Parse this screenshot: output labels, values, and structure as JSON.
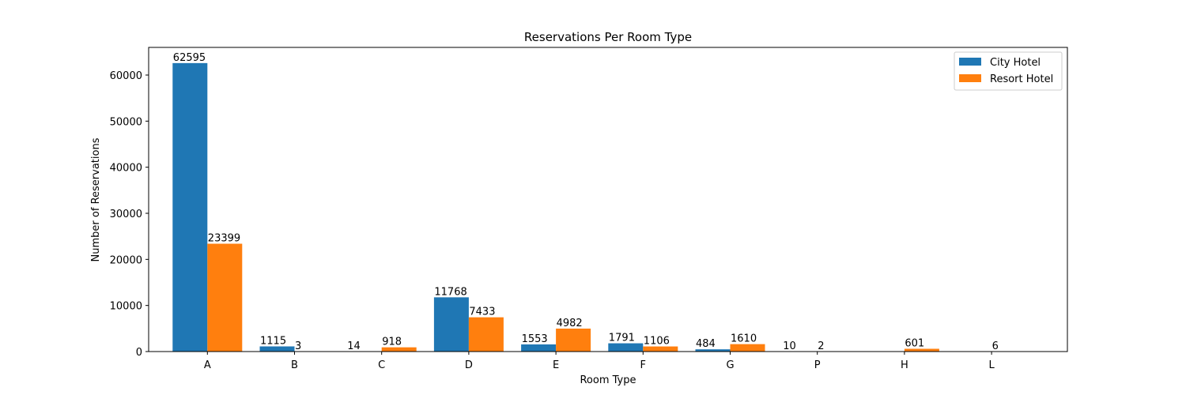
{
  "chart_data": {
    "type": "bar",
    "title": "Reservations Per Room Type",
    "xlabel": "Room Type",
    "ylabel": "Number of Reservations",
    "categories": [
      "A",
      "B",
      "C",
      "D",
      "E",
      "F",
      "G",
      "P",
      "H",
      "L"
    ],
    "series": [
      {
        "name": "City Hotel",
        "color": "#1f77b4",
        "values": [
          62595,
          1115,
          14,
          11768,
          1553,
          1791,
          484,
          10,
          null,
          null
        ],
        "labels": [
          "62595",
          "1115",
          "14",
          "11768",
          "1553",
          "1791",
          "484",
          "10",
          "",
          ""
        ]
      },
      {
        "name": "Resort Hotel",
        "color": "#ff7f0e",
        "values": [
          23399,
          3,
          918,
          7433,
          4982,
          1106,
          1610,
          2,
          601,
          6
        ],
        "labels": [
          "23399",
          "3",
          "918",
          "7433",
          "4982",
          "1106",
          "1610",
          "2",
          "601",
          "6"
        ]
      }
    ],
    "ylim": [
      0,
      66000
    ],
    "yticks": [
      0,
      10000,
      20000,
      30000,
      40000,
      50000,
      60000
    ],
    "ytick_labels": [
      "0",
      "10000",
      "20000",
      "30000",
      "40000",
      "50000",
      "60000"
    ],
    "grid": false,
    "legend": "top-right"
  }
}
